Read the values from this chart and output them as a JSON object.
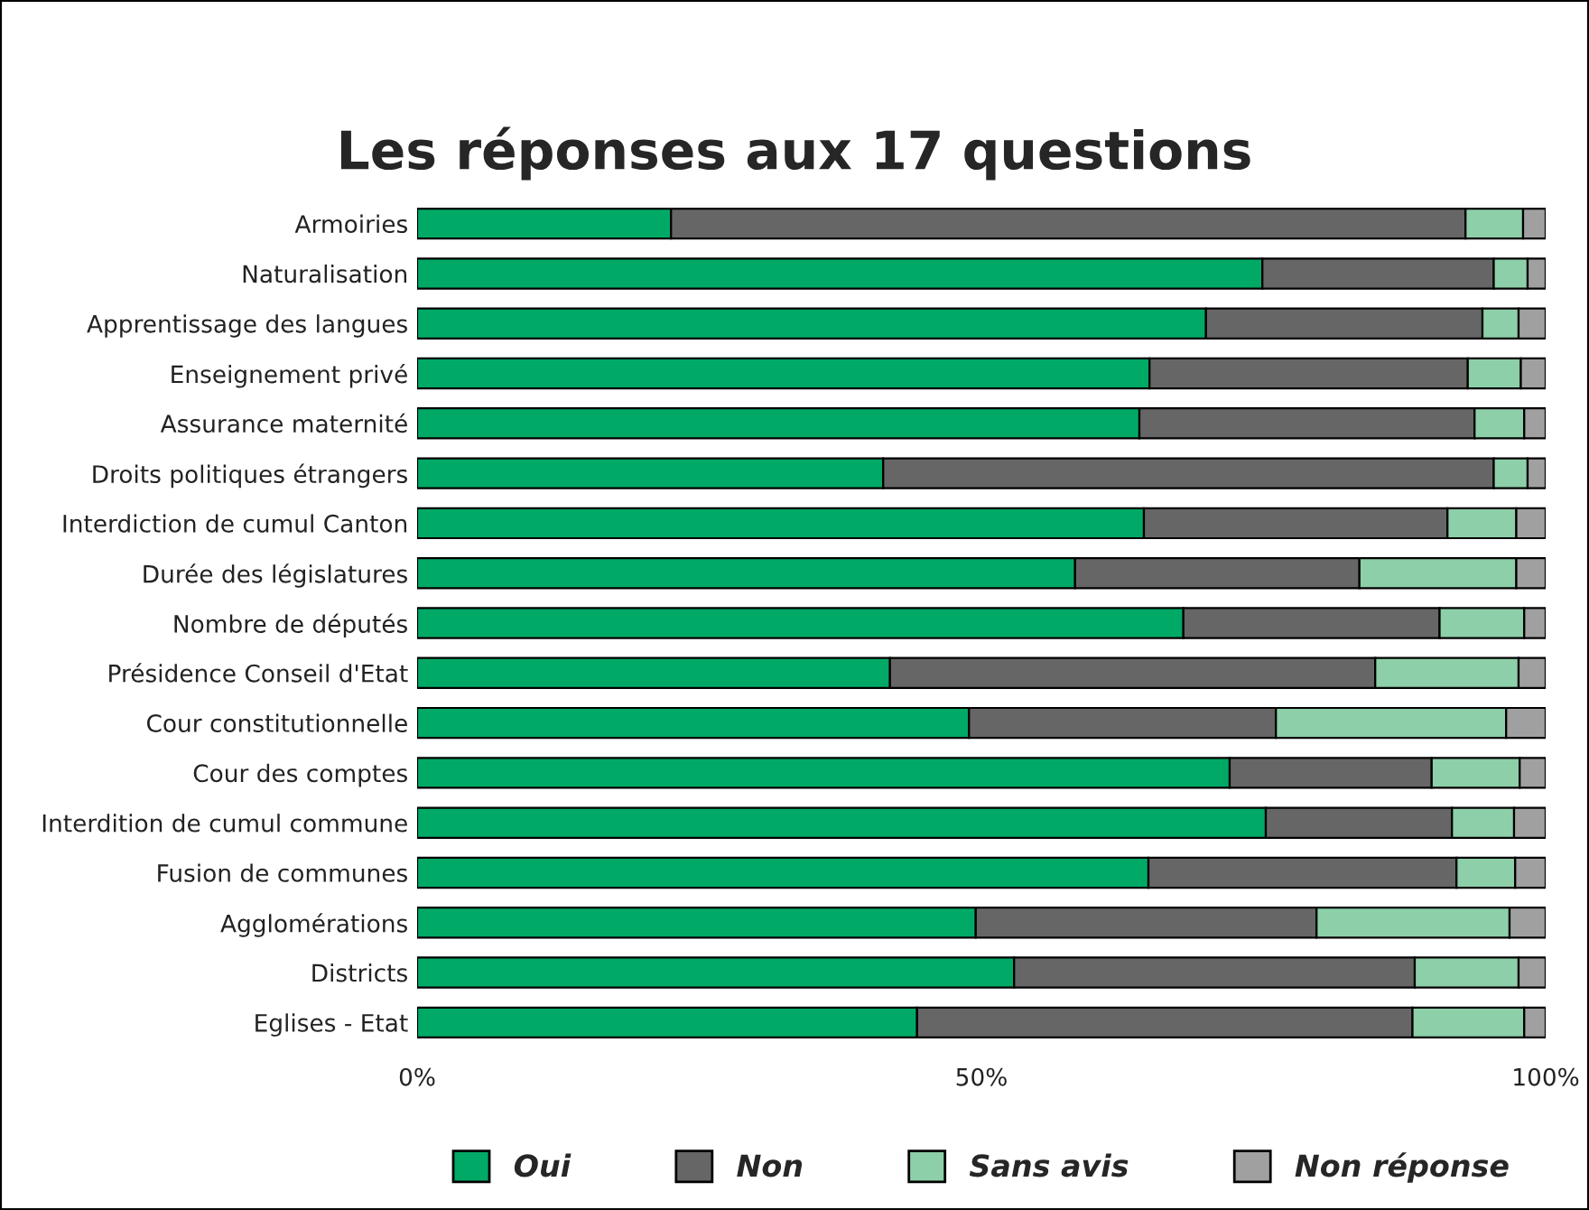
{
  "chart_data": {
    "type": "bar",
    "orientation": "horizontal",
    "stacked": true,
    "title": "Les réponses aux 17 questions",
    "categories": [
      "Armoiries",
      "Naturalisation",
      "Apprentissage des langues",
      "Enseignement privé",
      "Assurance maternité",
      "Droits politiques étrangers",
      "Interdiction de cumul Canton",
      "Durée des législatures",
      "Nombre de députés",
      "Présidence Conseil d'Etat",
      "Cour constitutionnelle",
      "Cour des comptes",
      "Interdition de cumul commune",
      "Fusion de communes",
      "Agglomérations",
      "Districts",
      "Eglises - Etat"
    ],
    "series": [
      {
        "name": "Oui",
        "color": "#00aa66",
        "values": [
          22.5,
          74.9,
          69.9,
          64.9,
          64.0,
          41.3,
          64.4,
          58.3,
          67.9,
          41.9,
          48.9,
          72.0,
          75.2,
          64.8,
          49.5,
          52.9,
          44.3
        ]
      },
      {
        "name": "Non",
        "color": "#666666",
        "values": [
          70.4,
          20.5,
          24.5,
          28.2,
          29.7,
          54.1,
          26.9,
          25.2,
          22.7,
          43.0,
          27.2,
          17.9,
          16.5,
          27.3,
          30.2,
          35.5,
          43.9
        ]
      },
      {
        "name": "Sans avis",
        "color": "#8ccfa8",
        "values": [
          5.1,
          3.0,
          3.2,
          4.7,
          4.4,
          3.0,
          6.1,
          13.9,
          7.5,
          12.7,
          20.4,
          7.8,
          5.5,
          5.2,
          17.1,
          9.2,
          9.9
        ]
      },
      {
        "name": "Non réponse",
        "color": "#a0a0a0",
        "values": [
          2.0,
          1.6,
          2.4,
          2.2,
          1.9,
          1.6,
          2.6,
          2.6,
          1.9,
          2.4,
          3.5,
          2.3,
          2.8,
          2.7,
          3.2,
          2.4,
          1.9
        ]
      }
    ],
    "xlim": [
      0,
      100
    ],
    "xticks": [
      {
        "value": 0,
        "label": "0%"
      },
      {
        "value": 50,
        "label": "50%"
      },
      {
        "value": 100,
        "label": "100%"
      }
    ],
    "grid": false,
    "legend": "bottom"
  }
}
